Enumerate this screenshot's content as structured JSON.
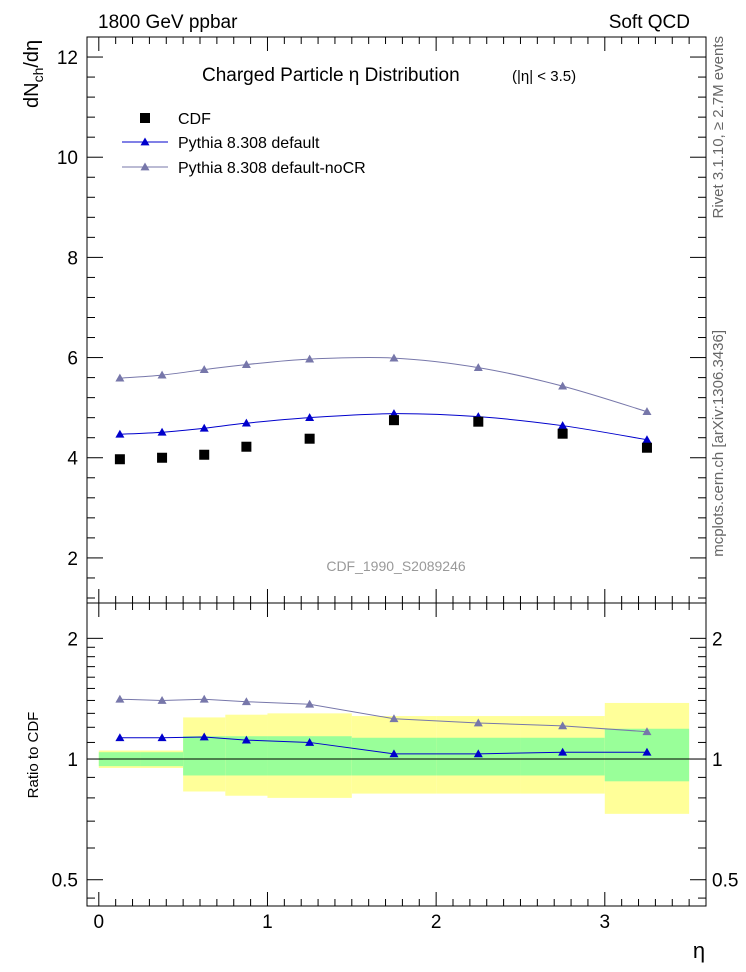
{
  "header": {
    "left": "1800 GeV ppbar",
    "right": "Soft QCD"
  },
  "side_text": {
    "top": "Rivet 3.1.10, ≥ 2.7M events",
    "bottom": "mcplots.cern.ch [arXiv:1306.3436]"
  },
  "chart_data": {
    "type": "line",
    "title_main": "Charged Particle  η Distribution",
    "title_cut": "(|η| < 3.5)",
    "watermark": "CDF_1990_S2089246",
    "xlabel": "η",
    "ylabel_main": "dN",
    "ylabel_sub": "ch",
    "ylabel_tail": "/dη",
    "ylabel_ratio": "Ratio to CDF",
    "xlim": [
      -0.07,
      3.6
    ],
    "ylim": [
      1.1,
      12.4
    ],
    "ratio_ylim": [
      0.43,
      2.45
    ],
    "x_ticks": [
      "0",
      "1",
      "2",
      "3"
    ],
    "y_ticks": [
      "2",
      "4",
      "6",
      "8",
      "10",
      "12"
    ],
    "ratio_ticks": [
      "0.5",
      "1",
      "2"
    ],
    "legend": {
      "position": "top-left",
      "entries": [
        "CDF",
        "Pythia 8.308 default",
        "Pythia 8.308 default-noCR"
      ]
    },
    "data": {
      "name": "CDF",
      "color": "#000000",
      "x": [
        0.125,
        0.375,
        0.625,
        0.875,
        1.25,
        1.75,
        2.25,
        2.75,
        3.25
      ],
      "y": [
        3.97,
        4.0,
        4.06,
        4.22,
        4.38,
        4.75,
        4.72,
        4.48,
        4.2
      ],
      "bins": [
        [
          0,
          0.25
        ],
        [
          0.25,
          0.5
        ],
        [
          0.5,
          0.75
        ],
        [
          0.75,
          1.0
        ],
        [
          1.0,
          1.5
        ],
        [
          1.5,
          2.0
        ],
        [
          2.0,
          2.5
        ],
        [
          2.5,
          3.0
        ],
        [
          3.0,
          3.5
        ]
      ],
      "band_stat": [
        [
          0.96,
          1.04
        ],
        [
          0.96,
          1.04
        ],
        [
          0.91,
          1.14
        ],
        [
          0.91,
          1.14
        ],
        [
          0.91,
          1.14
        ],
        [
          0.91,
          1.13
        ],
        [
          0.91,
          1.13
        ],
        [
          0.91,
          1.13
        ],
        [
          0.88,
          1.19
        ]
      ],
      "band_total": [
        [
          0.95,
          1.05
        ],
        [
          0.95,
          1.05
        ],
        [
          0.83,
          1.27
        ],
        [
          0.81,
          1.29
        ],
        [
          0.8,
          1.3
        ],
        [
          0.82,
          1.28
        ],
        [
          0.82,
          1.28
        ],
        [
          0.82,
          1.28
        ],
        [
          0.73,
          1.38
        ]
      ],
      "band_stat_color": "#99ff99",
      "band_total_color": "#ffff99"
    },
    "series": [
      {
        "name": "Pythia 8.308 default",
        "color": "#0000cc",
        "x": [
          0.125,
          0.375,
          0.625,
          0.875,
          1.25,
          1.75,
          2.25,
          2.75,
          3.25
        ],
        "y": [
          4.47,
          4.51,
          4.59,
          4.69,
          4.8,
          4.88,
          4.82,
          4.64,
          4.36
        ],
        "ratio": [
          1.13,
          1.13,
          1.135,
          1.115,
          1.1,
          1.03,
          1.03,
          1.04,
          1.04
        ]
      },
      {
        "name": "Pythia 8.308 default-noCR",
        "color": "#7777aa",
        "x": [
          0.125,
          0.375,
          0.625,
          0.875,
          1.25,
          1.75,
          2.25,
          2.75,
          3.25
        ],
        "y": [
          5.59,
          5.65,
          5.76,
          5.86,
          5.97,
          5.99,
          5.8,
          5.43,
          4.92
        ],
        "ratio": [
          1.41,
          1.4,
          1.41,
          1.39,
          1.37,
          1.26,
          1.23,
          1.21,
          1.17
        ]
      }
    ]
  }
}
